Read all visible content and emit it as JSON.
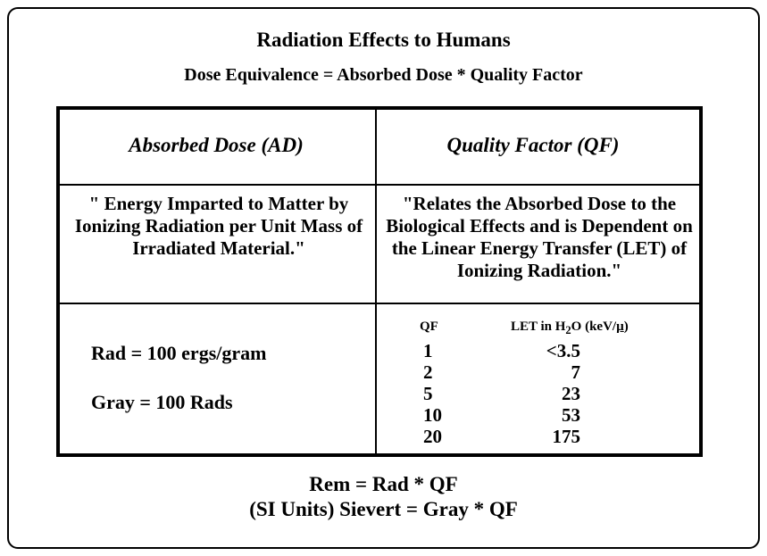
{
  "header": {
    "title": "Radiation Effects to Humans",
    "subtitle": "Dose Equivalence = Absorbed Dose * Quality Factor"
  },
  "table": {
    "headers": [
      "Absorbed Dose (AD)",
      "Quality Factor  (QF)"
    ],
    "definitions": [
      "\" Energy Imparted to Matter by Ionizing Radiation per Unit Mass of Irradiated Material.\"",
      "\"Relates the Absorbed Dose to the Biological Effects and is Dependent on the Linear Energy Transfer (LET) of Ionizing Radiation.\""
    ],
    "units": [
      "Rad = 100 ergs/gram",
      "Gray = 100 Rads"
    ],
    "qf_table": {
      "qf_header": "QF",
      "let_header_start": "LET in H",
      "let_header_sub": "2",
      "let_header_mid": "O (keV/",
      "let_header_unit": "µ",
      "let_header_end": ")",
      "rows": [
        [
          1,
          "<3.5"
        ],
        [
          2,
          7
        ],
        [
          5,
          23
        ],
        [
          10,
          53
        ],
        [
          20,
          175
        ]
      ]
    }
  },
  "footer": {
    "lines": [
      "Rem = Rad * QF",
      "(SI Units) Sievert = Gray * QF"
    ]
  }
}
